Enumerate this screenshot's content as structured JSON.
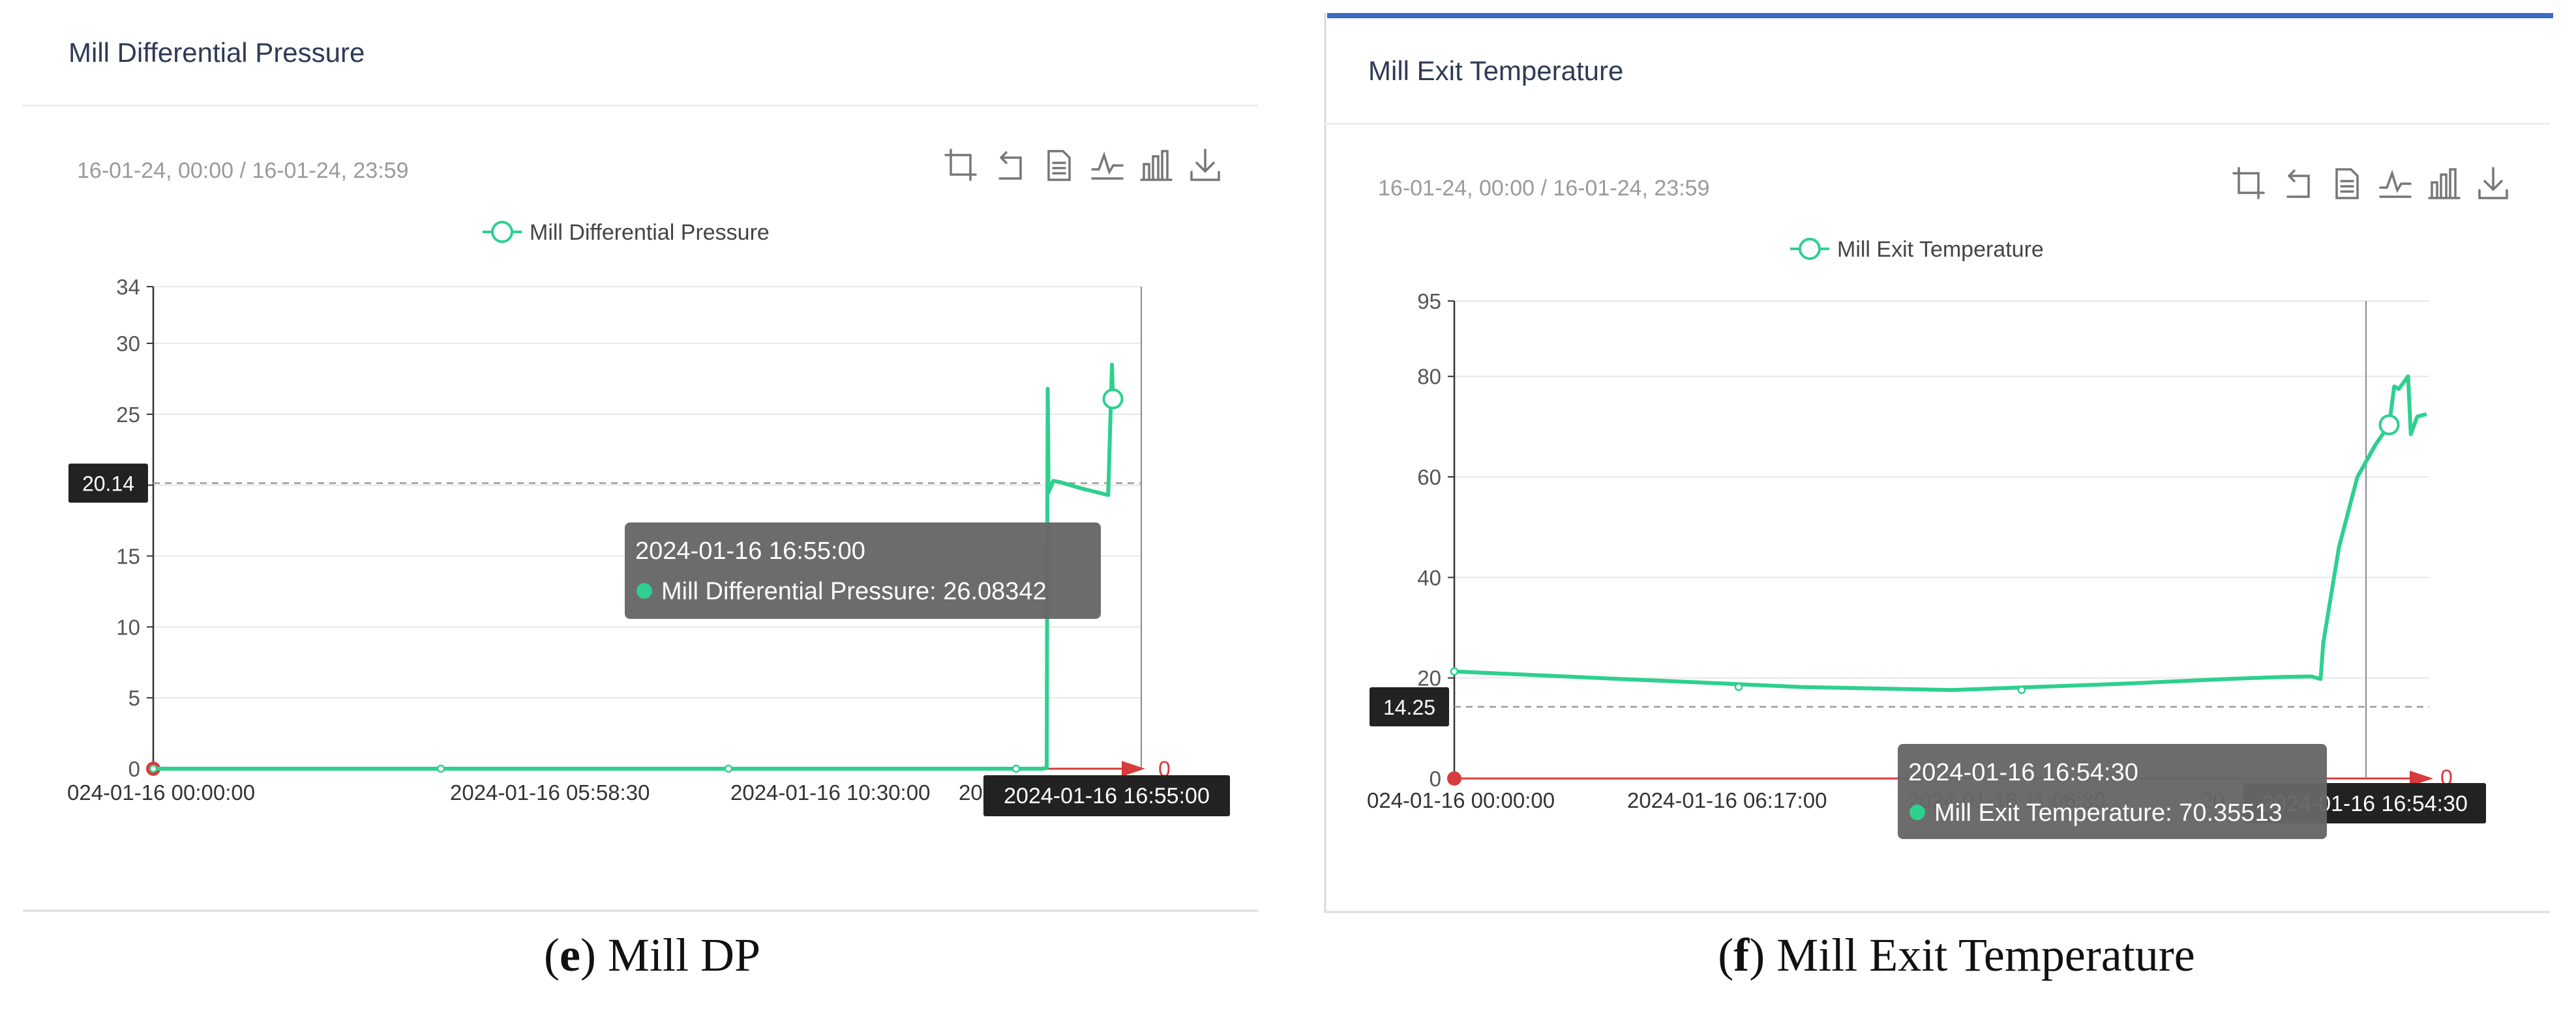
{
  "colors": {
    "series": "#2ed08f",
    "axis": "#333333",
    "grid": "#e8e8e8",
    "title_text": "#2f3a55",
    "muted_text": "#9a9a9a",
    "tick_text": "#555555",
    "tooltip_bg": "#666666",
    "label_bg": "#222222",
    "marker_red": "#d63c3c",
    "tab_accent": "#3c6bc4"
  },
  "toolbar_icons": [
    "crop-icon",
    "undo-icon",
    "data-view-icon",
    "line-chart-icon",
    "bar-chart-icon",
    "download-icon"
  ],
  "panels": [
    {
      "caption": {
        "letter": "e",
        "open": "(",
        "close": ") Mill DP"
      },
      "title": "Mill Differential Pressure",
      "date_range": "16-01-24, 00:00 / 16-01-24, 23:59",
      "tooltip": {
        "time": "2024-01-16 16:55:00",
        "label": "Mill Differential Pressure: 26.08342"
      },
      "crosshair_y_label": "20.14",
      "crosshair_x_label": "2024-01-16 16:55:00",
      "zero_marker_label": "0"
    },
    {
      "caption": {
        "letter": "f",
        "open": "(",
        "close": ") Mill Exit Temperature"
      },
      "title": "Mill Exit Temperature",
      "date_range": "16-01-24, 00:00 / 16-01-24, 23:59",
      "tooltip": {
        "time": "2024-01-16 16:54:30",
        "label": "Mill Exit Temperature: 70.35513"
      },
      "crosshair_y_label": "14.25",
      "crosshair_x_label": "2024-01-16 16:54:30",
      "zero_marker_label": "0"
    }
  ],
  "chart_data": [
    {
      "type": "line",
      "title": "Mill Differential Pressure",
      "legend": "Mill Differential Pressure",
      "x_tick_labels": [
        "024-01-16 00:00:00",
        "2024-01-16 05:58:30",
        "2024-01-16 10:30:00",
        "2024-0"
      ],
      "y_ticks": [
        0,
        5,
        10,
        15,
        20,
        25,
        30,
        34
      ],
      "ylim": [
        0,
        34
      ],
      "grid": true,
      "legend_position": "top-center",
      "series": [
        {
          "name": "Mill Differential Pressure",
          "x": [
            "2024-01-16 00:00:00",
            "2024-01-16 03:00:00",
            "2024-01-16 06:00:00",
            "2024-01-16 09:00:00",
            "2024-01-16 12:00:00",
            "2024-01-16 14:00:00",
            "2024-01-16 15:30:00",
            "2024-01-16 15:40:00",
            "2024-01-16 15:45:00",
            "2024-01-16 15:46:00",
            "2024-01-16 15:47:00",
            "2024-01-16 15:52:00",
            "2024-01-16 16:00:00",
            "2024-01-16 16:20:00",
            "2024-01-16 16:50:00",
            "2024-01-16 16:54:00",
            "2024-01-16 16:55:00"
          ],
          "y": [
            0,
            0,
            0,
            0,
            0,
            0,
            0,
            0,
            0.05,
            26.8,
            19.5,
            20.3,
            20.2,
            19.8,
            19.3,
            28.5,
            26.08342
          ]
        }
      ]
    },
    {
      "type": "line",
      "title": "Mill Exit Temperature",
      "legend": "Mill Exit Temperature",
      "x_tick_labels": [
        "024-01-16 00:00:00",
        "2024-01-16 06:17:00",
        "2024-01-16 11:06:30",
        "20"
      ],
      "y_ticks": [
        0,
        20,
        40,
        60,
        80,
        95
      ],
      "ylim": [
        0,
        95
      ],
      "grid": true,
      "legend_position": "top-center",
      "series": [
        {
          "name": "Mill Exit Temperature",
          "x": [
            "2024-01-16 00:00:00",
            "2024-01-16 03:00:00",
            "2024-01-16 06:17:00",
            "2024-01-16 09:00:00",
            "2024-01-16 12:00:00",
            "2024-01-16 14:00:00",
            "2024-01-16 15:00:00",
            "2024-01-16 15:30:00",
            "2024-01-16 15:40:00",
            "2024-01-16 15:43:00",
            "2024-01-16 16:00:00",
            "2024-01-16 16:20:00",
            "2024-01-16 16:40:00",
            "2024-01-16 16:54:30",
            "2024-01-16 17:00:00",
            "2024-01-16 17:05:00",
            "2024-01-16 17:15:00",
            "2024-01-16 17:18:00",
            "2024-01-16 17:25:00",
            "2024-01-16 17:35:00"
          ],
          "y": [
            21.3,
            19.8,
            18.2,
            17.6,
            18.8,
            19.8,
            20.2,
            20.3,
            19.8,
            27.0,
            46.0,
            60.0,
            66.5,
            70.35513,
            78.0,
            77.5,
            80.0,
            68.5,
            72.0,
            72.5
          ]
        }
      ]
    }
  ]
}
